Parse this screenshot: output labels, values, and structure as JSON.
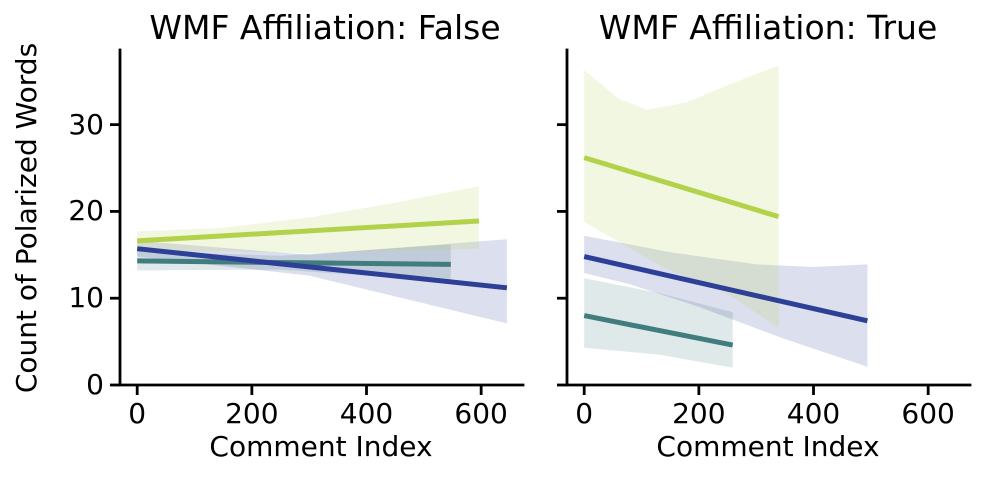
{
  "figure": {
    "background": "#ffffff",
    "text_color": "#000000"
  },
  "chart_data": {
    "type": "line",
    "title": "",
    "xlabel": "Comment Index",
    "ylabel": "Count of Polarized Words",
    "x_ticks": [
      0,
      200,
      400,
      600
    ],
    "y_ticks": [
      0,
      10,
      20,
      30
    ],
    "xlim": [
      -30,
      673
    ],
    "ylim": [
      0,
      38.6
    ],
    "grid": false,
    "legend": "none",
    "band_opacity": 0.17,
    "panels": [
      {
        "title": "WMF Affiliation: False",
        "series": [
          {
            "name": "teal-group",
            "color": "#417d7e",
            "line": [
              [
                0,
                14.3
              ],
              [
                547,
                13.9
              ]
            ],
            "ci_upper": [
              [
                0,
                15.4
              ],
              [
                250,
                14.9
              ],
              [
                547,
                16.2
              ]
            ],
            "ci_lower": [
              [
                0,
                13.2
              ],
              [
                250,
                13.3
              ],
              [
                547,
                11.9
              ]
            ]
          },
          {
            "name": "blue-group",
            "color": "#2d3f97",
            "line": [
              [
                0,
                15.7
              ],
              [
                645,
                11.2
              ]
            ],
            "ci_upper": [
              [
                0,
                16.6
              ],
              [
                300,
                15.0
              ],
              [
                645,
                16.8
              ]
            ],
            "ci_lower": [
              [
                0,
                14.8
              ],
              [
                300,
                12.6
              ],
              [
                645,
                7.1
              ]
            ]
          },
          {
            "name": "green-group",
            "color": "#b2d24b",
            "line": [
              [
                0,
                16.6
              ],
              [
                596,
                18.9
              ]
            ],
            "ci_upper": [
              [
                0,
                17.7
              ],
              [
                150,
                18.1
              ],
              [
                300,
                19.3
              ],
              [
                450,
                21.0
              ],
              [
                596,
                22.9
              ]
            ],
            "ci_lower": [
              [
                0,
                15.3
              ],
              [
                150,
                15.4
              ],
              [
                300,
                15.2
              ],
              [
                450,
                15.5
              ],
              [
                596,
                15.7
              ]
            ]
          }
        ]
      },
      {
        "title": "WMF Affiliation: True",
        "series": [
          {
            "name": "teal-group",
            "color": "#417d7e",
            "line": [
              [
                0,
                8.0
              ],
              [
                259,
                4.6
              ]
            ],
            "ci_upper": [
              [
                0,
                12.3
              ],
              [
                130,
                10.6
              ],
              [
                259,
                8.4
              ]
            ],
            "ci_lower": [
              [
                0,
                4.3
              ],
              [
                130,
                3.5
              ],
              [
                259,
                2.0
              ]
            ]
          },
          {
            "name": "blue-group",
            "color": "#2d3f97",
            "line": [
              [
                0,
                14.8
              ],
              [
                494,
                7.4
              ]
            ],
            "ci_upper": [
              [
                0,
                17.2
              ],
              [
                150,
                15.3
              ],
              [
                300,
                13.9
              ],
              [
                400,
                13.6
              ],
              [
                494,
                13.9
              ]
            ],
            "ci_lower": [
              [
                0,
                12.9
              ],
              [
                80,
                11.6
              ],
              [
                200,
                9.0
              ],
              [
                350,
                5.3
              ],
              [
                494,
                2.1
              ]
            ]
          },
          {
            "name": "green-group",
            "color": "#b2d24b",
            "line": [
              [
                0,
                26.2
              ],
              [
                339,
                19.4
              ]
            ],
            "ci_upper": [
              [
                0,
                36.3
              ],
              [
                60,
                33.0
              ],
              [
                110,
                31.7
              ],
              [
                180,
                32.6
              ],
              [
                260,
                34.8
              ],
              [
                339,
                36.8
              ]
            ],
            "ci_lower": [
              [
                0,
                18.8
              ],
              [
                60,
                16.5
              ],
              [
                137,
                13.6
              ],
              [
                250,
                10.5
              ],
              [
                339,
                6.6
              ]
            ]
          }
        ]
      }
    ]
  }
}
